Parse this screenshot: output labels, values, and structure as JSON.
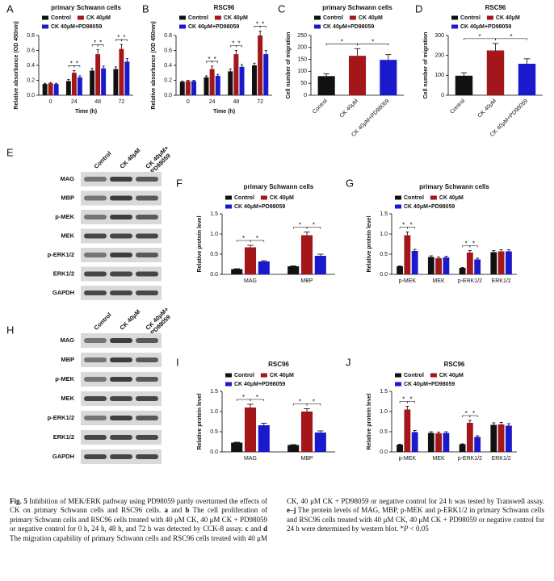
{
  "chart_data": [
    {
      "type": "bar",
      "panel": "A",
      "title": "primary Schwann cells",
      "ylabel": "Relative absorbance (OD 450nm)",
      "xlabel": "Time (h)",
      "categories": [
        "0",
        "24",
        "48",
        "72"
      ],
      "series": [
        {
          "name": "Control",
          "color": "#111111",
          "values": [
            0.15,
            0.19,
            0.33,
            0.35
          ],
          "errors": [
            0.01,
            0.02,
            0.03,
            0.03
          ]
        },
        {
          "name": "CK 40μM",
          "color": "#a3161a",
          "values": [
            0.16,
            0.3,
            0.55,
            0.62
          ],
          "errors": [
            0.01,
            0.03,
            0.06,
            0.06
          ]
        },
        {
          "name": "CK 40μM+PD98059",
          "color": "#1a1acc",
          "values": [
            0.15,
            0.24,
            0.36,
            0.45
          ],
          "errors": [
            0.01,
            0.02,
            0.03,
            0.04
          ]
        }
      ],
      "ylim": [
        0,
        0.8
      ],
      "yticks": [
        {
          "value": 0,
          "label": "0.0"
        },
        0.2,
        0.4,
        0.6,
        0.8
      ],
      "significance": [
        {
          "category": "24",
          "series": [
            "Control",
            "CK 40μM"
          ],
          "label": "*"
        },
        {
          "category": "24",
          "series": [
            "CK 40μM",
            "CK 40μM+PD98059"
          ],
          "label": "*"
        },
        {
          "category": "48",
          "series": [
            "Control",
            "CK 40μM"
          ],
          "label": "*"
        },
        {
          "category": "48",
          "series": [
            "CK 40μM",
            "CK 40μM+PD98059"
          ],
          "label": "*"
        },
        {
          "category": "72",
          "series": [
            "Control",
            "CK 40μM"
          ],
          "label": "*"
        },
        {
          "category": "72",
          "series": [
            "CK 40μM",
            "CK 40μM+PD98059"
          ],
          "label": "*"
        }
      ]
    },
    {
      "type": "bar",
      "panel": "B",
      "title": "RSC96",
      "ylabel": "Relative absorbance (OD 450nm)",
      "xlabel": "Time (h)",
      "categories": [
        "0",
        "24",
        "48",
        "72"
      ],
      "series": [
        {
          "name": "Control",
          "color": "#111111",
          "values": [
            0.18,
            0.24,
            0.32,
            0.4
          ],
          "errors": [
            0.01,
            0.02,
            0.03,
            0.03
          ]
        },
        {
          "name": "CK 40μM",
          "color": "#a3161a",
          "values": [
            0.19,
            0.35,
            0.55,
            0.8
          ],
          "errors": [
            0.01,
            0.04,
            0.05,
            0.06
          ]
        },
        {
          "name": "CK 40μM+PD98059",
          "color": "#1a1acc",
          "values": [
            0.19,
            0.26,
            0.38,
            0.55
          ],
          "errors": [
            0.01,
            0.02,
            0.03,
            0.05
          ]
        }
      ],
      "ylim": [
        0,
        0.8
      ],
      "yticks": [
        {
          "value": 0,
          "label": "0.0"
        },
        0.2,
        0.4,
        0.6,
        0.8
      ],
      "significance": [
        {
          "category": "24",
          "series": [
            "Control",
            "CK 40μM"
          ],
          "label": "*"
        },
        {
          "category": "24",
          "series": [
            "CK 40μM",
            "CK 40μM+PD98059"
          ],
          "label": "*"
        },
        {
          "category": "48",
          "series": [
            "Control",
            "CK 40μM"
          ],
          "label": "*"
        },
        {
          "category": "48",
          "series": [
            "CK 40μM",
            "CK 40μM+PD98059"
          ],
          "label": "*"
        },
        {
          "category": "72",
          "series": [
            "Control",
            "CK 40μM"
          ],
          "label": "*"
        },
        {
          "category": "72",
          "series": [
            "CK 40μM",
            "CK 40μM+PD98059"
          ],
          "label": "*"
        }
      ]
    },
    {
      "type": "bar",
      "panel": "C",
      "title": "primary Schwann cells",
      "ylabel": "Cell number of migration",
      "categories": [
        "Control",
        "CK 40μM",
        "CK 40μM+PD98059"
      ],
      "values": [
        80,
        165,
        148
      ],
      "errors": [
        10,
        30,
        22
      ],
      "colors": [
        "#111111",
        "#a3161a",
        "#1a1acc"
      ],
      "ylim": [
        0,
        250
      ],
      "yticks": [
        0,
        50,
        100,
        150,
        200,
        250
      ],
      "significance": [
        {
          "categories": [
            "Control",
            "CK 40μM"
          ],
          "label": "*"
        },
        {
          "categories": [
            "CK 40μM",
            "CK 40μM+PD98059"
          ],
          "label": "*"
        }
      ]
    },
    {
      "type": "bar",
      "panel": "D",
      "title": "RSC96",
      "ylabel": "Cell number of migration",
      "categories": [
        "Control",
        "CK 40μM",
        "CK 40μM+PD98059"
      ],
      "values": [
        98,
        225,
        158
      ],
      "errors": [
        15,
        35,
        25
      ],
      "colors": [
        "#111111",
        "#a3161a",
        "#1a1acc"
      ],
      "ylim": [
        0,
        300
      ],
      "yticks": [
        0,
        100,
        200,
        300
      ],
      "significance": [
        {
          "categories": [
            "Control",
            "CK 40μM"
          ],
          "label": "*"
        },
        {
          "categories": [
            "CK 40μM",
            "CK 40μM+PD98059"
          ],
          "label": "*"
        }
      ]
    },
    {
      "type": "bar",
      "panel": "F",
      "title": "primary Schwann cells",
      "ylabel": "Relative protein level",
      "categories": [
        "MAG",
        "MBP"
      ],
      "series": [
        {
          "name": "Control",
          "color": "#111111",
          "values": [
            0.13,
            0.2
          ],
          "errors": [
            0.01,
            0.01
          ]
        },
        {
          "name": "CK 40μM",
          "color": "#a3161a",
          "values": [
            0.67,
            0.97
          ],
          "errors": [
            0.05,
            0.08
          ]
        },
        {
          "name": "CK 40μM+PD98059",
          "color": "#1a1acc",
          "values": [
            0.32,
            0.46
          ],
          "errors": [
            0.02,
            0.04
          ]
        }
      ],
      "ylim": [
        0,
        1.5
      ],
      "yticks": [
        {
          "value": 0,
          "label": "0.0"
        },
        0.5,
        {
          "value": 1,
          "label": "1.0"
        },
        1.5
      ],
      "significance": [
        {
          "category": "MAG",
          "series": [
            "Control",
            "CK 40μM"
          ],
          "label": "*"
        },
        {
          "category": "MAG",
          "series": [
            "CK 40μM",
            "CK 40μM+PD98059"
          ],
          "label": "*"
        },
        {
          "category": "MBP",
          "series": [
            "Control",
            "CK 40μM"
          ],
          "label": "*"
        },
        {
          "category": "MBP",
          "series": [
            "CK 40μM",
            "CK 40μM+PD98059"
          ],
          "label": "*"
        }
      ]
    },
    {
      "type": "bar",
      "panel": "G",
      "title": "primary Schwann cells",
      "ylabel": "Relative protein level",
      "categories": [
        "p-MEK",
        "MEK",
        "p-ERK1/2",
        "ERK1/2"
      ],
      "series": [
        {
          "name": "Control",
          "color": "#111111",
          "values": [
            0.2,
            0.43,
            0.16,
            0.55
          ],
          "errors": [
            0.01,
            0.03,
            0.01,
            0.04
          ]
        },
        {
          "name": "CK 40μM",
          "color": "#a3161a",
          "values": [
            0.97,
            0.4,
            0.54,
            0.57
          ],
          "errors": [
            0.08,
            0.03,
            0.05,
            0.04
          ]
        },
        {
          "name": "CK 40μM+PD98059",
          "color": "#1a1acc",
          "values": [
            0.58,
            0.42,
            0.37,
            0.57
          ],
          "errors": [
            0.04,
            0.03,
            0.03,
            0.04
          ]
        }
      ],
      "ylim": [
        0,
        1.5
      ],
      "yticks": [
        {
          "value": 0,
          "label": "0.0"
        },
        0.5,
        {
          "value": 1,
          "label": "1.0"
        },
        1.5
      ],
      "significance": [
        {
          "category": "p-MEK",
          "series": [
            "Control",
            "CK 40μM"
          ],
          "label": "*"
        },
        {
          "category": "p-MEK",
          "series": [
            "CK 40μM",
            "CK 40μM+PD98059"
          ],
          "label": "*"
        },
        {
          "category": "p-ERK1/2",
          "series": [
            "Control",
            "CK 40μM"
          ],
          "label": "*"
        },
        {
          "category": "p-ERK1/2",
          "series": [
            "CK 40μM",
            "CK 40μM+PD98059"
          ],
          "label": "*"
        }
      ]
    },
    {
      "type": "bar",
      "panel": "I",
      "title": "RSC96",
      "ylabel": "Relative protein level",
      "categories": [
        "MAG",
        "MBP"
      ],
      "series": [
        {
          "name": "Control",
          "color": "#111111",
          "values": [
            0.23,
            0.17
          ],
          "errors": [
            0.01,
            0.01
          ]
        },
        {
          "name": "CK 40μM",
          "color": "#a3161a",
          "values": [
            1.1,
            1.0
          ],
          "errors": [
            0.08,
            0.07
          ]
        },
        {
          "name": "CK 40μM+PD98059",
          "color": "#1a1acc",
          "values": [
            0.66,
            0.48
          ],
          "errors": [
            0.05,
            0.04
          ]
        }
      ],
      "ylim": [
        0,
        1.5
      ],
      "yticks": [
        {
          "value": 0,
          "label": "0.0"
        },
        0.5,
        {
          "value": 1,
          "label": "1.0"
        },
        1.5
      ],
      "significance": [
        {
          "category": "MAG",
          "series": [
            "Control",
            "CK 40μM"
          ],
          "label": "*"
        },
        {
          "category": "MAG",
          "series": [
            "CK 40μM",
            "CK 40μM+PD98059"
          ],
          "label": "*"
        },
        {
          "category": "MBP",
          "series": [
            "Control",
            "CK 40μM"
          ],
          "label": "*"
        },
        {
          "category": "MBP",
          "series": [
            "CK 40μM",
            "CK 40μM+PD98059"
          ],
          "label": "*"
        }
      ]
    },
    {
      "type": "bar",
      "panel": "J",
      "title": "RSC96",
      "ylabel": "Relative protein level",
      "categories": [
        "p-MEK",
        "MEK",
        "p-ERK1/2",
        "ERK1/2"
      ],
      "series": [
        {
          "name": "Control",
          "color": "#111111",
          "values": [
            0.18,
            0.47,
            0.19,
            0.67
          ],
          "errors": [
            0.01,
            0.03,
            0.01,
            0.05
          ]
        },
        {
          "name": "CK 40μM",
          "color": "#a3161a",
          "values": [
            1.05,
            0.46,
            0.72,
            0.68
          ],
          "errors": [
            0.08,
            0.03,
            0.06,
            0.05
          ]
        },
        {
          "name": "CK 40μM+PD98059",
          "color": "#1a1acc",
          "values": [
            0.49,
            0.47,
            0.37,
            0.65
          ],
          "errors": [
            0.04,
            0.03,
            0.03,
            0.05
          ]
        }
      ],
      "ylim": [
        0,
        1.5
      ],
      "yticks": [
        {
          "value": 0,
          "label": "0.0"
        },
        0.5,
        {
          "value": 1,
          "label": "1.0"
        },
        1.5
      ],
      "significance": [
        {
          "category": "p-MEK",
          "series": [
            "Control",
            "CK 40μM"
          ],
          "label": "*"
        },
        {
          "category": "p-MEK",
          "series": [
            "CK 40μM",
            "CK 40μM+PD98059"
          ],
          "label": "*"
        },
        {
          "category": "p-ERK1/2",
          "series": [
            "Control",
            "CK 40μM"
          ],
          "label": "*"
        },
        {
          "category": "p-ERK1/2",
          "series": [
            "CK 40μM",
            "CK 40μM+PD98059"
          ],
          "label": "*"
        }
      ]
    }
  ],
  "blots": [
    {
      "panel": "E",
      "columns": [
        [
          "Control"
        ],
        [
          "CK 40μM"
        ],
        [
          "CK 40μM+",
          "PD98059"
        ]
      ],
      "rows": [
        "MAG",
        "MBP",
        "p-MEK",
        "MEK",
        "p-ERK1/2",
        "ERK1/2",
        "GAPDH"
      ]
    },
    {
      "panel": "H",
      "columns": [
        [
          "Control"
        ],
        [
          "CK 40μM"
        ],
        [
          "CK 40μM+",
          "PD98059"
        ]
      ],
      "rows": [
        "MAG",
        "MBP",
        "p-MEK",
        "MEK",
        "p-ERK1/2",
        "ERK1/2",
        "GAPDH"
      ]
    }
  ],
  "caption": {
    "segments": [
      {
        "text": "Fig. 5",
        "style": "bold"
      },
      {
        "text": " Inhibition of MEK/ERK pathway using PD98059 partly overturned the effects of CK on primary Schwann cells and RSC96 cells. ",
        "style": "plain"
      },
      {
        "text": "a",
        "style": "bold"
      },
      {
        "text": " and ",
        "style": "plain"
      },
      {
        "text": "b",
        "style": "bold"
      },
      {
        "text": " The cell proliferation of primary Schwann cells and RSC96 cells treated with 40 μM CK, 40 μM CK + PD98059 or negative control for 0 h, 24 h, 48 h, and 72 h was detected by CCK-8 assay. ",
        "style": "plain"
      },
      {
        "text": "c",
        "style": "bold"
      },
      {
        "text": " and ",
        "style": "plain"
      },
      {
        "text": "d",
        "style": "bold"
      },
      {
        "text": " The migration capability of primary Schwann cells and RSC96 cells treated with 40 μM CK, 40 μM CK + PD98059 or negative control for 24 h was tested by Transwell assay. ",
        "style": "plain"
      },
      {
        "text": "e–j",
        "style": "bold"
      },
      {
        "text": " The protein levels of MAG, MBP, p-MEK and p-ERK1/2 in primary Schwann cells and RSC96 cells treated with 40 μM CK, 40 μM CK + PD98059 or negative control for 24 h were determined by western blot. *",
        "style": "plain"
      },
      {
        "text": "P",
        "style": "italic"
      },
      {
        "text": " < 0.05",
        "style": "plain"
      }
    ]
  }
}
